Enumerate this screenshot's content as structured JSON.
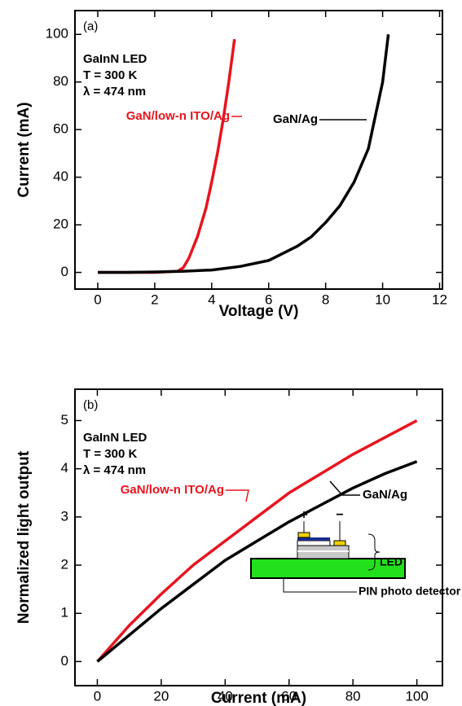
{
  "chart_data": [
    {
      "type": "line",
      "panel_label": "(a)",
      "annotations": [
        "GaInN LED",
        "T = 300 K",
        "λ = 474 nm"
      ],
      "x_label": "Voltage (V)",
      "y_label": "Current (mA)",
      "xlim": [
        -0.8,
        12.1
      ],
      "ylim": [
        -7,
        110
      ],
      "xticks": [
        0,
        2,
        4,
        6,
        8,
        10,
        12
      ],
      "yticks": [
        0,
        20,
        40,
        60,
        80,
        100
      ],
      "series": [
        {
          "name": "GaN/low-n ITO/Ag",
          "color": "#e8141e",
          "x": [
            0,
            1,
            2,
            2.8,
            3.0,
            3.2,
            3.5,
            3.8,
            4.0,
            4.2,
            4.4,
            4.6,
            4.8
          ],
          "values": [
            0,
            0,
            0,
            0.5,
            2,
            6,
            15,
            27,
            38,
            50,
            64,
            80,
            98
          ]
        },
        {
          "name": "GaN/Ag",
          "color": "#000000",
          "x": [
            0,
            1,
            2,
            3,
            4,
            5,
            6,
            7,
            7.5,
            8,
            8.5,
            9,
            9.5,
            10,
            10.2
          ],
          "values": [
            0,
            0,
            0.2,
            0.5,
            1,
            2.5,
            5,
            11,
            15,
            21,
            28,
            38,
            52,
            80,
            100
          ]
        }
      ]
    },
    {
      "type": "line",
      "panel_label": "(b)",
      "annotations": [
        "GaInN LED",
        "T = 300 K",
        "λ = 474 nm"
      ],
      "x_label": "Current (mA)",
      "y_label": "Normalized light output",
      "xlim": [
        -7,
        108
      ],
      "ylim": [
        -0.5,
        5.65
      ],
      "xticks": [
        0,
        20,
        40,
        60,
        80,
        100
      ],
      "yticks": [
        0,
        1,
        2,
        3,
        4,
        5
      ],
      "inset_labels": [
        "+",
        "−",
        "LED",
        "PIN photo detector"
      ],
      "series": [
        {
          "name": "GaN/low-n ITO/Ag",
          "color": "#e8141e",
          "x": [
            0,
            10,
            20,
            30,
            40,
            50,
            60,
            70,
            80,
            90,
            100
          ],
          "values": [
            0,
            0.75,
            1.4,
            2.0,
            2.5,
            3.0,
            3.5,
            3.9,
            4.3,
            4.65,
            5.0
          ]
        },
        {
          "name": "GaN/Ag",
          "color": "#000000",
          "x": [
            0,
            10,
            20,
            30,
            40,
            50,
            60,
            70,
            80,
            90,
            100
          ],
          "values": [
            0,
            0.55,
            1.1,
            1.6,
            2.1,
            2.5,
            2.9,
            3.25,
            3.6,
            3.9,
            4.15
          ]
        }
      ]
    }
  ]
}
